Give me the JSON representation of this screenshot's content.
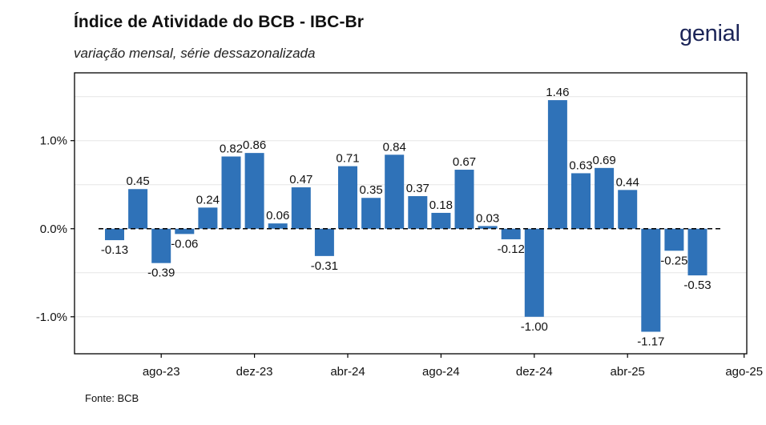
{
  "header": {
    "title": "Índice de Atividade do BCB - IBC-Br",
    "subtitle": "variação mensal, série dessazonalizada",
    "logo": "genial"
  },
  "footer": {
    "source": "Fonte: BCB"
  },
  "colors": {
    "bar": "#2f72b8",
    "axis": "#000000",
    "zero_line": "#000000",
    "grid": "#e6e6e6"
  },
  "chart_data": {
    "type": "bar",
    "title": "Índice de Atividade do BCB - IBC-Br",
    "subtitle": "variação mensal, série dessazonalizada",
    "xlabel": "",
    "ylabel": "",
    "categories": [
      "jun-23",
      "jul-23",
      "ago-23",
      "set-23",
      "out-23",
      "nov-23",
      "dez-23",
      "jan-24",
      "fev-24",
      "mar-24",
      "abr-24",
      "mai-24",
      "jun-24",
      "jul-24",
      "ago-24",
      "set-24",
      "out-24",
      "nov-24",
      "dez-24",
      "jan-25",
      "fev-25",
      "mar-25",
      "abr-25",
      "mai-25",
      "jun-25",
      "jul-25"
    ],
    "values": [
      -0.13,
      0.45,
      -0.39,
      -0.06,
      0.24,
      0.82,
      0.86,
      0.06,
      0.47,
      -0.31,
      0.71,
      0.35,
      0.84,
      0.37,
      0.18,
      0.67,
      0.03,
      -0.12,
      -1.0,
      1.46,
      0.63,
      0.69,
      0.44,
      -1.17,
      -0.25,
      -0.53
    ],
    "data_labels": [
      "-0.13",
      "0.45",
      "-0.39",
      "-0.06",
      "0.24",
      "0.82",
      "0.86",
      "0.06",
      "0.47",
      "-0.31",
      "0.71",
      "0.35",
      "0.84",
      "0.37",
      "0.18",
      "0.67",
      "0.03",
      "-0.12",
      "-1.00",
      "1.46",
      "0.63",
      "0.69",
      "0.44",
      "-1.17",
      "-0.25",
      "-0.53"
    ],
    "x_tick_labels": [
      "ago-23",
      "dez-23",
      "abr-24",
      "ago-24",
      "dez-24",
      "abr-25",
      "ago-25"
    ],
    "y_tick_labels": [
      "1.0%",
      "0.0%",
      "-1.0%"
    ],
    "y_ticks": [
      1.0,
      0.0,
      -1.0
    ],
    "ylim": [
      -1.42,
      1.77
    ],
    "zero_line": "dashed",
    "grid": true,
    "legend": "none"
  }
}
